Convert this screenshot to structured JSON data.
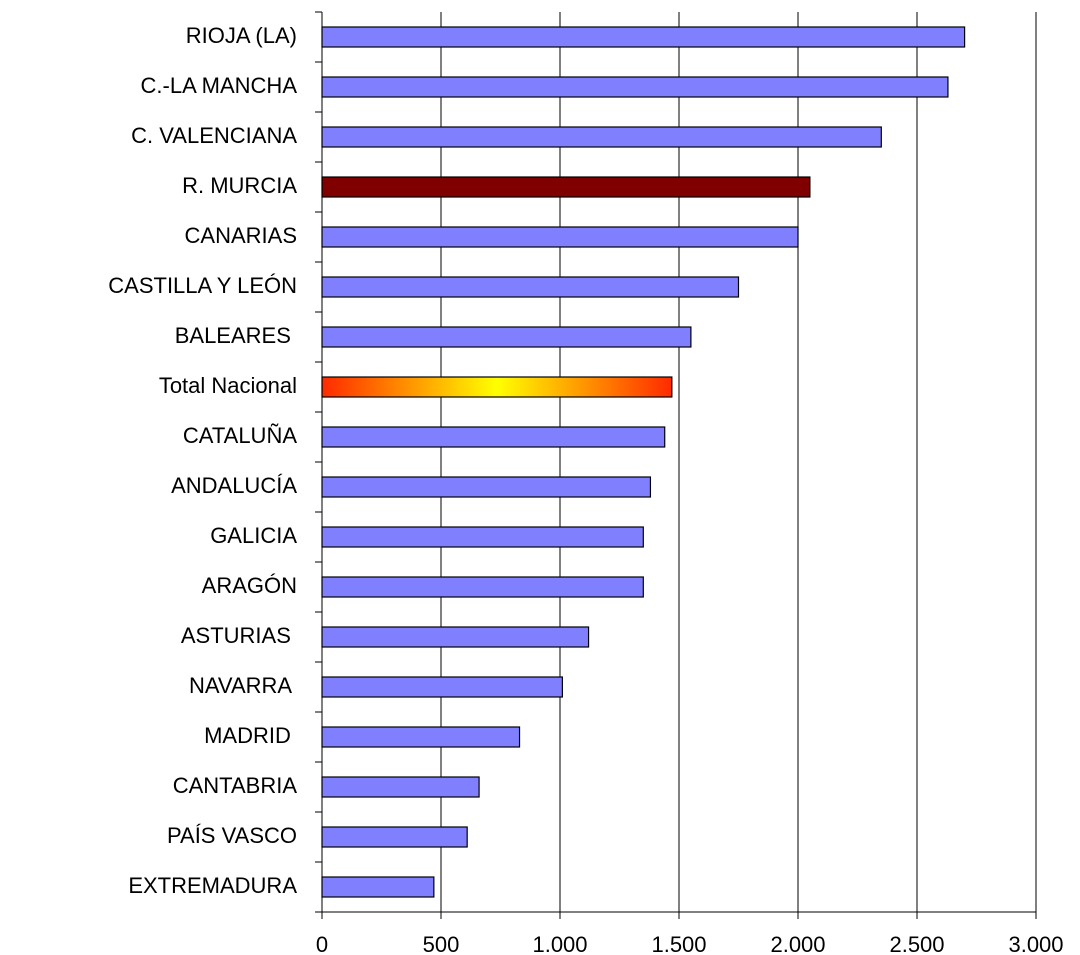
{
  "chart_data": {
    "type": "bar",
    "orientation": "horizontal",
    "categories": [
      "RIOJA (LA)",
      "C.-LA MANCHA",
      "C. VALENCIANA",
      "R. MURCIA",
      "CANARIAS",
      "CASTILLA Y LEÓN",
      "BALEARES ",
      "Total Nacional",
      "CATALUÑA",
      "ANDALUCÍA",
      "GALICIA",
      "ARAGÓN",
      "ASTURIAS ",
      "NAVARRA ",
      "MADRID ",
      "CANTABRIA",
      "PAÍS VASCO",
      "EXTREMADURA"
    ],
    "values": [
      2700,
      2630,
      2350,
      2050,
      2000,
      1750,
      1550,
      1470,
      1440,
      1380,
      1350,
      1350,
      1120,
      1010,
      830,
      660,
      610,
      470
    ],
    "colors": [
      "#8080ff",
      "#8080ff",
      "#8080ff",
      "#800000",
      "#8080ff",
      "#8080ff",
      "#8080ff",
      [
        "#ff2a00",
        "#ffff00",
        "#ff2a00"
      ],
      "#8080ff",
      "#8080ff",
      "#8080ff",
      "#8080ff",
      "#8080ff",
      "#8080ff",
      "#8080ff",
      "#8080ff",
      "#8080ff",
      "#8080ff"
    ],
    "xlim": [
      0,
      3000
    ],
    "xticks": [
      0,
      500,
      {
        "value": 1000,
        "label": "1.000"
      },
      {
        "value": 1500,
        "label": "1.500"
      },
      {
        "value": 2000,
        "label": "2.000"
      },
      {
        "value": 2500,
        "label": "2.500"
      },
      {
        "value": 3000,
        "label": "3.000"
      }
    ],
    "grid": true
  }
}
